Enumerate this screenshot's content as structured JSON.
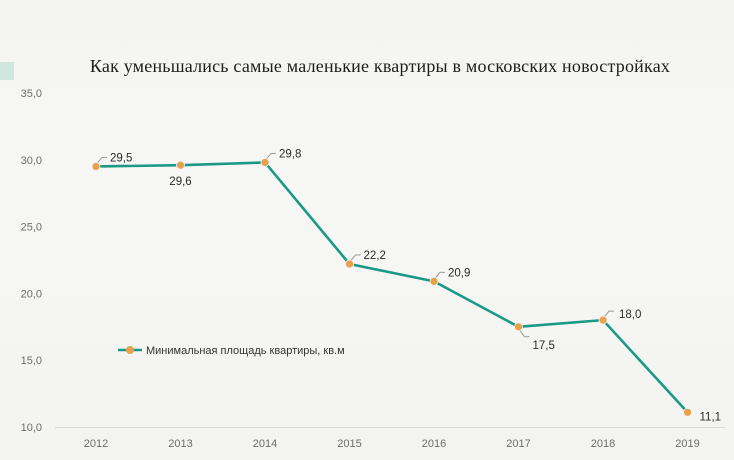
{
  "chart_data": {
    "type": "line",
    "title": "Как уменьшались самые маленькие квартиры в московских новостройках",
    "xlabel": "",
    "ylabel": "",
    "categories": [
      "2012",
      "2013",
      "2014",
      "2015",
      "2016",
      "2017",
      "2018",
      "2019"
    ],
    "series": [
      {
        "name": "Минимальная площадь квартиры, кв.м",
        "values": [
          29.5,
          29.6,
          29.8,
          22.2,
          20.9,
          17.5,
          18.0,
          11.1
        ],
        "labels": [
          "29,5",
          "29,6",
          "29,8",
          "22,2",
          "20,9",
          "17,5",
          "18,0",
          "11,1"
        ]
      }
    ],
    "ylim": [
      10,
      35
    ],
    "yticks": [
      "10,0",
      "15,0",
      "20,0",
      "25,0",
      "30,0",
      "35,0"
    ],
    "grid": false,
    "legend_position": "left",
    "colors": {
      "line": "#1a9a86",
      "marker": "#e8a04a",
      "leader": "#9a9a9a"
    }
  }
}
